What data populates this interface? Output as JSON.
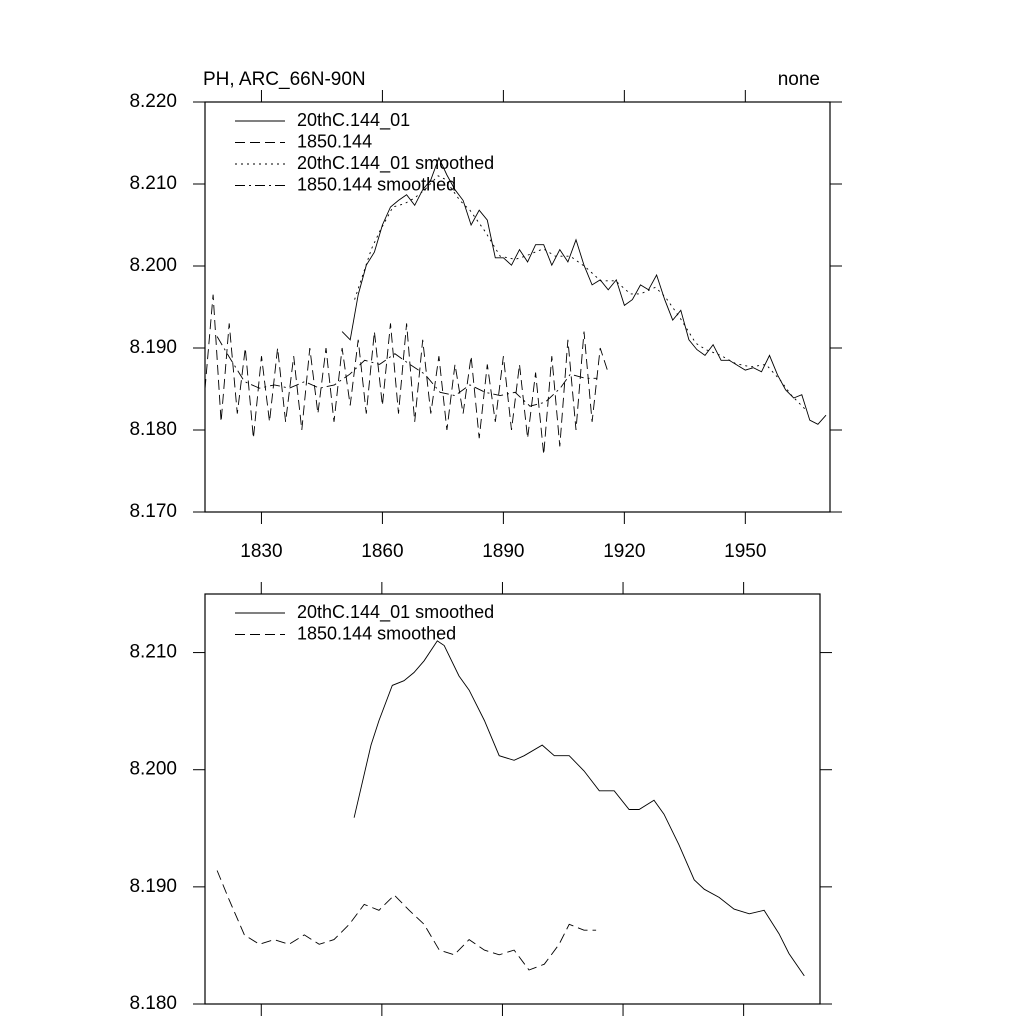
{
  "chart_data": [
    {
      "type": "line",
      "title": "PH, ARC_66N-90N",
      "title_right": "none",
      "xlim": [
        1816,
        1971
      ],
      "ylim": [
        8.17,
        8.22
      ],
      "xticks": [
        1830,
        1860,
        1890,
        1920,
        1950
      ],
      "yticks": [
        {
          "value": 8.17,
          "label": "8.170"
        },
        {
          "value": 8.18,
          "label": "8.180"
        },
        {
          "value": 8.19,
          "label": "8.190"
        },
        {
          "value": 8.2,
          "label": "8.200"
        },
        {
          "value": 8.21,
          "label": "8.210"
        },
        {
          "value": 8.22,
          "label": "8.220"
        }
      ],
      "show_xtick_labels": true,
      "legend": "upper left",
      "series": [
        {
          "name": "20thC.144_01",
          "color": "#000000",
          "dash": "solid",
          "x": [
            1850,
            1852,
            1854,
            1856,
            1858,
            1860,
            1862,
            1864,
            1866,
            1868,
            1870,
            1872,
            1874,
            1876,
            1878,
            1880,
            1882,
            1884,
            1886,
            1888,
            1890,
            1892,
            1894,
            1896,
            1898,
            1900,
            1902,
            1904,
            1906,
            1908,
            1910,
            1912,
            1914,
            1916,
            1918,
            1920,
            1922,
            1924,
            1926,
            1928,
            1930,
            1932,
            1934,
            1936,
            1938,
            1940,
            1942,
            1944,
            1946,
            1948,
            1950,
            1952,
            1954,
            1956,
            1958,
            1960,
            1962,
            1964,
            1966,
            1968,
            1970
          ],
          "values": [
            8.192,
            8.191,
            8.1965,
            8.2001,
            8.2017,
            8.205,
            8.2072,
            8.208,
            8.2087,
            8.2074,
            8.2093,
            8.2105,
            8.2132,
            8.2111,
            8.2093,
            8.208,
            8.205,
            8.2068,
            8.2056,
            8.201,
            8.201,
            8.2001,
            8.202,
            8.2005,
            8.2026,
            8.2026,
            8.2001,
            8.202,
            8.2005,
            8.2032,
            8.2001,
            8.1977,
            8.1983,
            8.1971,
            8.1983,
            8.1952,
            8.1959,
            8.1977,
            8.1971,
            8.1989,
            8.1959,
            8.1934,
            8.1946,
            8.191,
            8.1898,
            8.1891,
            8.1904,
            8.1885,
            8.1885,
            8.1879,
            8.1873,
            8.1876,
            8.1871,
            8.1891,
            8.1867,
            8.1849,
            8.1839,
            8.1843,
            8.1812,
            8.1807,
            8.1818
          ]
        },
        {
          "name": "1850.144",
          "color": "#000000",
          "dash": "dashed",
          "x": [
            1816,
            1818,
            1820,
            1822,
            1824,
            1826,
            1828,
            1830,
            1832,
            1834,
            1836,
            1838,
            1840,
            1842,
            1844,
            1846,
            1848,
            1850,
            1852,
            1854,
            1856,
            1858,
            1860,
            1862,
            1864,
            1866,
            1868,
            1870,
            1872,
            1874,
            1876,
            1878,
            1880,
            1882,
            1884,
            1886,
            1888,
            1890,
            1892,
            1894,
            1896,
            1898,
            1900,
            1902,
            1904,
            1906,
            1908,
            1910,
            1912,
            1914,
            1916
          ],
          "values": [
            8.185,
            8.1965,
            8.181,
            8.193,
            8.182,
            8.19,
            8.179,
            8.189,
            8.181,
            8.19,
            8.181,
            8.189,
            8.18,
            8.19,
            8.182,
            8.19,
            8.181,
            8.19,
            8.183,
            8.191,
            8.182,
            8.192,
            8.183,
            8.193,
            8.182,
            8.193,
            8.181,
            8.191,
            8.182,
            8.189,
            8.18,
            8.188,
            8.182,
            8.189,
            8.179,
            8.188,
            8.181,
            8.189,
            8.18,
            8.188,
            8.179,
            8.187,
            8.177,
            8.189,
            8.178,
            8.191,
            8.18,
            8.192,
            8.181,
            8.19,
            8.187
          ]
        },
        {
          "name": "20thC.144_01 smoothed",
          "color": "#000000",
          "dash": "dotted",
          "x": [
            1853.1,
            1857.3,
            1859.3,
            1862.6,
            1865.5,
            1868,
            1870.5,
            1873.8,
            1875.5,
            1879.2,
            1881.7,
            1885.5,
            1889.2,
            1892.9,
            1895.4,
            1899.9,
            1902.9,
            1906.6,
            1910.3,
            1914.1,
            1917.8,
            1921.5,
            1924,
            1927.7,
            1930.2,
            1933.9,
            1937.7,
            1940.2,
            1943.9,
            1947.6,
            1951.4,
            1955.1,
            1958.8,
            1961.3,
            1965.1
          ],
          "values": [
            8.1959,
            8.2021,
            8.2042,
            8.2072,
            8.2076,
            8.2083,
            8.2093,
            8.211,
            8.2106,
            8.208,
            8.2068,
            8.2042,
            8.2012,
            8.2008,
            8.2012,
            8.2021,
            8.2012,
            8.2012,
            8.1999,
            8.1982,
            8.1982,
            8.1966,
            8.1966,
            8.1974,
            8.1962,
            8.1936,
            8.1906,
            8.1898,
            8.1891,
            8.1881,
            8.1877,
            8.188,
            8.186,
            8.1843,
            8.1824
          ]
        },
        {
          "name": "1850.144 smoothed",
          "color": "#000000",
          "dash": "dashdot",
          "x": [
            1819,
            1822,
            1825.8,
            1829.5,
            1833.2,
            1836.9,
            1840.7,
            1844.4,
            1848.1,
            1851.9,
            1855.6,
            1859.3,
            1863.1,
            1866.8,
            1870.5,
            1874.3,
            1878,
            1881.7,
            1885.5,
            1889.2,
            1892.9,
            1896.6,
            1900.4,
            1904.1,
            1906.6,
            1910.3,
            1913.3
          ],
          "values": [
            8.1914,
            8.1889,
            8.1859,
            8.1851,
            8.1855,
            8.1851,
            8.1859,
            8.1851,
            8.1855,
            8.1868,
            8.1885,
            8.188,
            8.1893,
            8.188,
            8.1868,
            8.1846,
            8.1842,
            8.1855,
            8.1846,
            8.1842,
            8.1846,
            8.1829,
            8.1834,
            8.1851,
            8.1868,
            8.1863,
            8.1863
          ]
        }
      ]
    },
    {
      "type": "line",
      "xlim": [
        1816,
        1969
      ],
      "ylim": [
        8.18,
        8.215
      ],
      "xticks": [
        1830,
        1860,
        1890,
        1920,
        1950
      ],
      "yticks": [
        {
          "value": 8.18,
          "label": "8.180"
        },
        {
          "value": 8.19,
          "label": "8.190"
        },
        {
          "value": 8.2,
          "label": "8.200"
        },
        {
          "value": 8.21,
          "label": "8.210"
        }
      ],
      "show_xtick_labels": false,
      "legend": "upper left",
      "series": [
        {
          "name": "20thC.144_01 smoothed",
          "color": "#000000",
          "dash": "solid",
          "x": [
            1853.1,
            1857.3,
            1859.3,
            1862.6,
            1865.5,
            1868,
            1870.5,
            1873.8,
            1875.5,
            1879.2,
            1881.7,
            1885.5,
            1889.2,
            1892.9,
            1895.4,
            1899.9,
            1902.9,
            1906.6,
            1910.3,
            1914.1,
            1917.8,
            1921.5,
            1924,
            1927.7,
            1930.2,
            1933.9,
            1937.7,
            1940.2,
            1943.9,
            1947.6,
            1951.4,
            1955.1,
            1958.8,
            1961.3,
            1965.1
          ],
          "values": [
            8.1959,
            8.2021,
            8.2042,
            8.2072,
            8.2076,
            8.2083,
            8.2093,
            8.211,
            8.2106,
            8.208,
            8.2068,
            8.2042,
            8.2012,
            8.2008,
            8.2012,
            8.2021,
            8.2012,
            8.2012,
            8.1999,
            8.1982,
            8.1982,
            8.1966,
            8.1966,
            8.1974,
            8.1962,
            8.1936,
            8.1906,
            8.1898,
            8.1891,
            8.1881,
            8.1877,
            8.188,
            8.186,
            8.1843,
            8.1824
          ]
        },
        {
          "name": "1850.144 smoothed",
          "color": "#000000",
          "dash": "dashed",
          "x": [
            1819,
            1822,
            1825.8,
            1829.5,
            1833.2,
            1836.9,
            1840.7,
            1844.4,
            1848.1,
            1851.9,
            1855.6,
            1859.3,
            1863.1,
            1866.8,
            1870.5,
            1874.3,
            1878,
            1881.7,
            1885.5,
            1889.2,
            1892.9,
            1896.6,
            1900.4,
            1904.1,
            1906.6,
            1910.3,
            1913.3
          ],
          "values": [
            8.1914,
            8.1889,
            8.1859,
            8.1851,
            8.1855,
            8.1851,
            8.1859,
            8.1851,
            8.1855,
            8.1868,
            8.1885,
            8.188,
            8.1893,
            8.188,
            8.1868,
            8.1846,
            8.1842,
            8.1855,
            8.1846,
            8.1842,
            8.1846,
            8.1829,
            8.1834,
            8.1851,
            8.1868,
            8.1863,
            8.1863
          ]
        }
      ]
    }
  ]
}
